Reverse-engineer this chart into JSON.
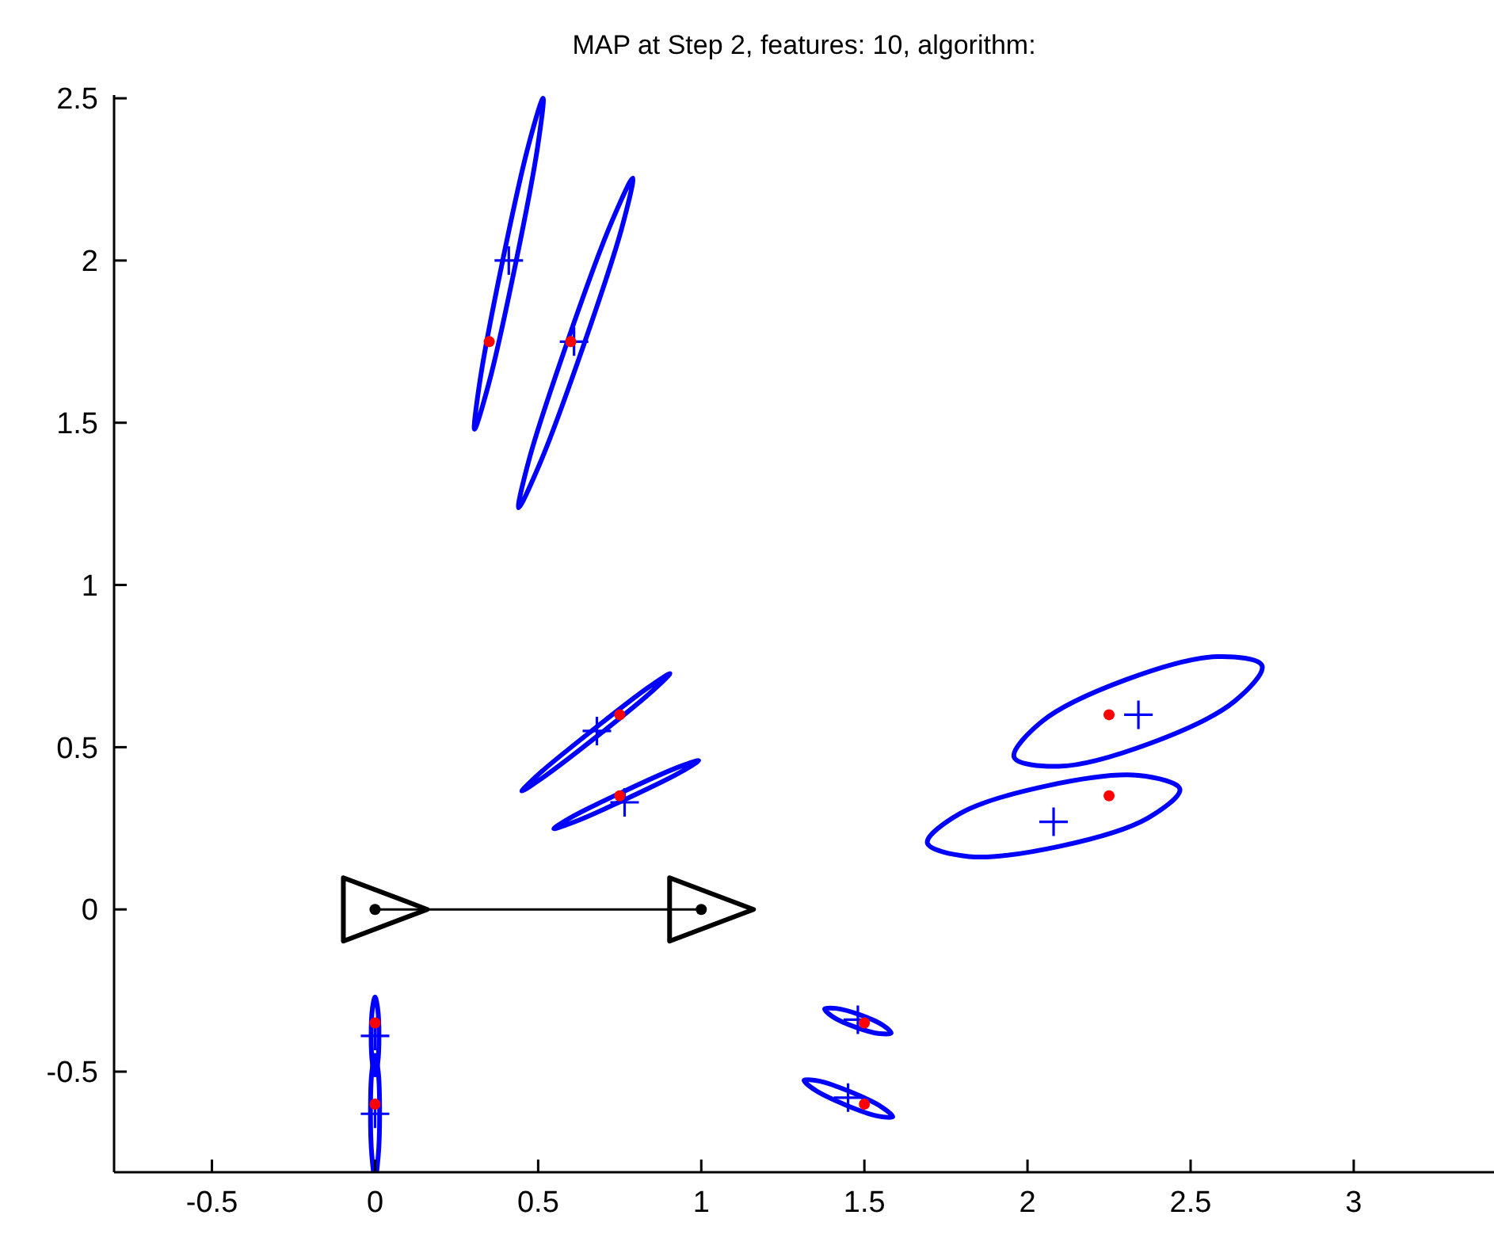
{
  "chart_data": {
    "type": "scatter",
    "title": "MAP at Step 2, features: 10, algorithm:",
    "xlim": [
      -0.8,
      3.43
    ],
    "ylim": [
      -0.81,
      2.51
    ],
    "xticks": [
      -0.5,
      0,
      0.5,
      1,
      1.5,
      2,
      2.5,
      3
    ],
    "yticks": [
      -0.5,
      0,
      0.5,
      1,
      1.5,
      2,
      2.5
    ],
    "grid": false,
    "series": [
      {
        "type": "scatter",
        "marker": "cross",
        "color": "#0000ff",
        "x": [
          0.41,
          0.61,
          0.68,
          0.765,
          2.34,
          2.08,
          1.48,
          1.45,
          0,
          0
        ],
        "values": [
          2.0,
          1.75,
          0.55,
          0.33,
          0.6,
          0.27,
          -0.34,
          -0.58,
          -0.39,
          -0.63
        ]
      },
      {
        "type": "scatter",
        "marker": "circle",
        "color": "#ff0000",
        "x": [
          0.35,
          0.6,
          0.75,
          0.75,
          2.25,
          2.25,
          1.5,
          1.5,
          0,
          0
        ],
        "values": [
          1.75,
          1.75,
          0.6,
          0.35,
          0.6,
          0.35,
          -0.35,
          -0.6,
          -0.35,
          -0.6
        ]
      },
      {
        "type": "line",
        "color": "#000000",
        "x": [
          0,
          1
        ],
        "values": [
          0,
          0
        ]
      },
      {
        "type": "scatter",
        "marker": "circle",
        "color": "#000000",
        "x": [
          0,
          1
        ],
        "values": [
          0,
          0
        ]
      }
    ]
  }
}
